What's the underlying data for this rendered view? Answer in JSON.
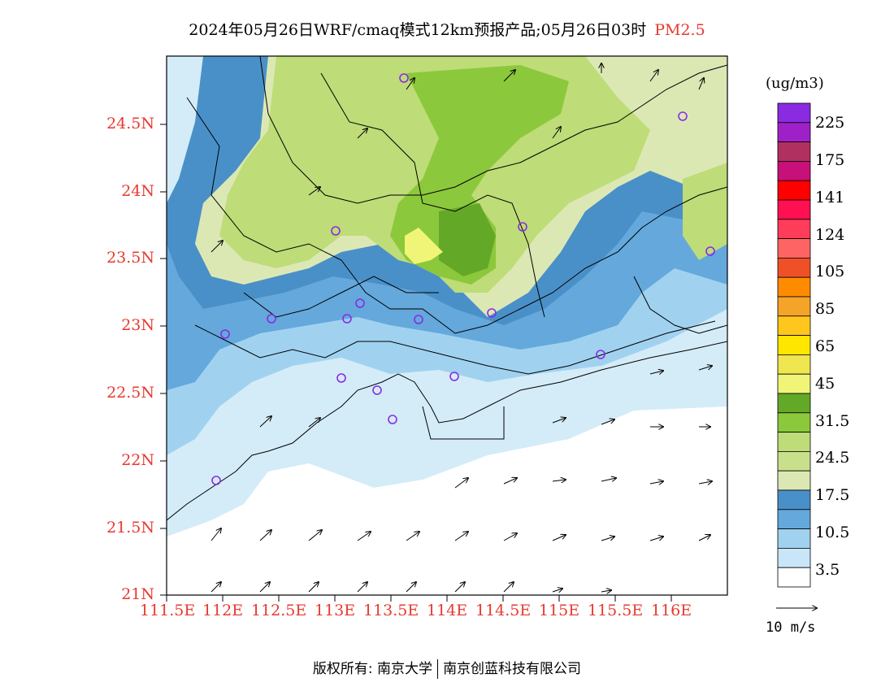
{
  "title": "2024年05月26日WRF/cmaq模式12km预报产品;05月26日03时",
  "pollutant": "PM2.5",
  "units": "(ug/m3)",
  "wind_scale_label": "10 m/s",
  "footer": {
    "left": "版权所有: 南京大学",
    "right": "南京创蓝科技有限公司"
  },
  "lat_labels": [
    "24.5N",
    "24N",
    "23.5N",
    "23N",
    "22.5N",
    "22N",
    "21.5N",
    "21N"
  ],
  "lon_labels": [
    "111.5E",
    "112E",
    "112.5E",
    "113E",
    "113.5E",
    "114E",
    "114.5E",
    "115E",
    "115.5E",
    "116E"
  ],
  "colorbar": {
    "labels": [
      "225",
      "175",
      "141",
      "124",
      "105",
      "85",
      "65",
      "45",
      "31.5",
      "24.5",
      "17.5",
      "10.5",
      "3.5"
    ],
    "colors": [
      "#8a2be2",
      "#a020c8",
      "#b03060",
      "#c8107a",
      "#ff0000",
      "#ff1050",
      "#ff3c5a",
      "#ff6464",
      "#f05028",
      "#ff8c00",
      "#f4a428",
      "#ffc61e",
      "#ffe600",
      "#f0e650",
      "#f0f578",
      "#64a828",
      "#8cc83c",
      "#bedc78",
      "#c8e08c",
      "#dce8b4",
      "#4a90c8",
      "#64a8dc",
      "#a0d2f0",
      "#c8e6f8",
      "#ffffff"
    ]
  },
  "legend_stations_color": "#8a2be2"
}
